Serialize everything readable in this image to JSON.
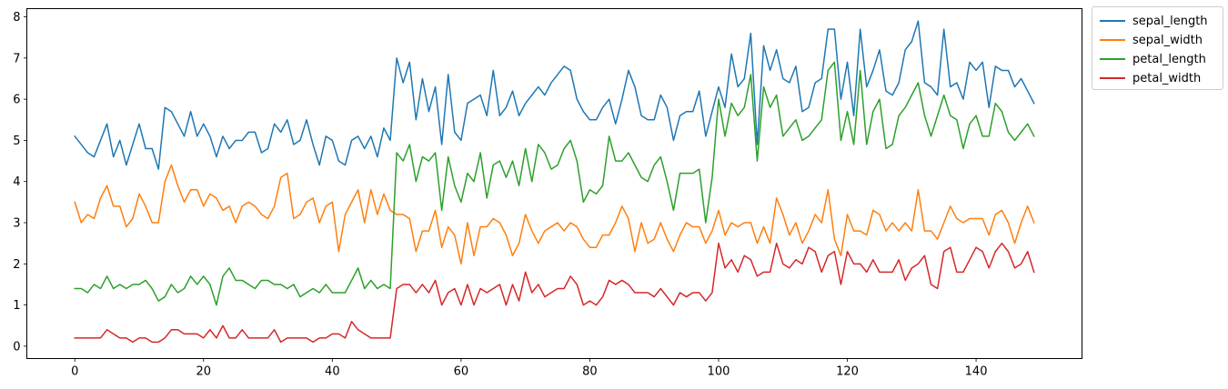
{
  "chart_data": {
    "type": "line",
    "x": [
      0,
      1,
      2,
      3,
      4,
      5,
      6,
      7,
      8,
      9,
      10,
      11,
      12,
      13,
      14,
      15,
      16,
      17,
      18,
      19,
      20,
      21,
      22,
      23,
      24,
      25,
      26,
      27,
      28,
      29,
      30,
      31,
      32,
      33,
      34,
      35,
      36,
      37,
      38,
      39,
      40,
      41,
      42,
      43,
      44,
      45,
      46,
      47,
      48,
      49,
      50,
      51,
      52,
      53,
      54,
      55,
      56,
      57,
      58,
      59,
      60,
      61,
      62,
      63,
      64,
      65,
      66,
      67,
      68,
      69,
      70,
      71,
      72,
      73,
      74,
      75,
      76,
      77,
      78,
      79,
      80,
      81,
      82,
      83,
      84,
      85,
      86,
      87,
      88,
      89,
      90,
      91,
      92,
      93,
      94,
      95,
      96,
      97,
      98,
      99,
      100,
      101,
      102,
      103,
      104,
      105,
      106,
      107,
      108,
      109,
      110,
      111,
      112,
      113,
      114,
      115,
      116,
      117,
      118,
      119,
      120,
      121,
      122,
      123,
      124,
      125,
      126,
      127,
      128,
      129,
      130,
      131,
      132,
      133,
      134,
      135,
      136,
      137,
      138,
      139,
      140,
      141,
      142,
      143,
      144,
      145,
      146,
      147,
      148,
      149
    ],
    "xlim": [
      -7.45,
      156.45
    ],
    "ylim": [
      -0.3,
      8.2
    ],
    "xticks": [
      0,
      20,
      40,
      60,
      80,
      100,
      120,
      140
    ],
    "yticks": [
      0,
      1,
      2,
      3,
      4,
      5,
      6,
      7,
      8
    ],
    "grid": false,
    "legend_position": "outside top-right",
    "series": [
      {
        "name": "sepal_length",
        "color": "#1f77b4",
        "values": [
          5.1,
          4.9,
          4.7,
          4.6,
          5.0,
          5.4,
          4.6,
          5.0,
          4.4,
          4.9,
          5.4,
          4.8,
          4.8,
          4.3,
          5.8,
          5.7,
          5.4,
          5.1,
          5.7,
          5.1,
          5.4,
          5.1,
          4.6,
          5.1,
          4.8,
          5.0,
          5.0,
          5.2,
          5.2,
          4.7,
          4.8,
          5.4,
          5.2,
          5.5,
          4.9,
          5.0,
          5.5,
          4.9,
          4.4,
          5.1,
          5.0,
          4.5,
          4.4,
          5.0,
          5.1,
          4.8,
          5.1,
          4.6,
          5.3,
          5.0,
          7.0,
          6.4,
          6.9,
          5.5,
          6.5,
          5.7,
          6.3,
          4.9,
          6.6,
          5.2,
          5.0,
          5.9,
          6.0,
          6.1,
          5.6,
          6.7,
          5.6,
          5.8,
          6.2,
          5.6,
          5.9,
          6.1,
          6.3,
          6.1,
          6.4,
          6.6,
          6.8,
          6.7,
          6.0,
          5.7,
          5.5,
          5.5,
          5.8,
          6.0,
          5.4,
          6.0,
          6.7,
          6.3,
          5.6,
          5.5,
          5.5,
          6.1,
          5.8,
          5.0,
          5.6,
          5.7,
          5.7,
          6.2,
          5.1,
          5.7,
          6.3,
          5.8,
          7.1,
          6.3,
          6.5,
          7.6,
          4.9,
          7.3,
          6.7,
          7.2,
          6.5,
          6.4,
          6.8,
          5.7,
          5.8,
          6.4,
          6.5,
          7.7,
          7.7,
          6.0,
          6.9,
          5.6,
          7.7,
          6.3,
          6.7,
          7.2,
          6.2,
          6.1,
          6.4,
          7.2,
          7.4,
          7.9,
          6.4,
          6.3,
          6.1,
          7.7,
          6.3,
          6.4,
          6.0,
          6.9,
          6.7,
          6.9,
          5.8,
          6.8,
          6.7,
          6.7,
          6.3,
          6.5,
          6.2,
          5.9
        ]
      },
      {
        "name": "sepal_width",
        "color": "#ff7f0e",
        "values": [
          3.5,
          3.0,
          3.2,
          3.1,
          3.6,
          3.9,
          3.4,
          3.4,
          2.9,
          3.1,
          3.7,
          3.4,
          3.0,
          3.0,
          4.0,
          4.4,
          3.9,
          3.5,
          3.8,
          3.8,
          3.4,
          3.7,
          3.6,
          3.3,
          3.4,
          3.0,
          3.4,
          3.5,
          3.4,
          3.2,
          3.1,
          3.4,
          4.1,
          4.2,
          3.1,
          3.2,
          3.5,
          3.6,
          3.0,
          3.4,
          3.5,
          2.3,
          3.2,
          3.5,
          3.8,
          3.0,
          3.8,
          3.2,
          3.7,
          3.3,
          3.2,
          3.2,
          3.1,
          2.3,
          2.8,
          2.8,
          3.3,
          2.4,
          2.9,
          2.7,
          2.0,
          3.0,
          2.2,
          2.9,
          2.9,
          3.1,
          3.0,
          2.7,
          2.2,
          2.5,
          3.2,
          2.8,
          2.5,
          2.8,
          2.9,
          3.0,
          2.8,
          3.0,
          2.9,
          2.6,
          2.4,
          2.4,
          2.7,
          2.7,
          3.0,
          3.4,
          3.1,
          2.3,
          3.0,
          2.5,
          2.6,
          3.0,
          2.6,
          2.3,
          2.7,
          3.0,
          2.9,
          2.9,
          2.5,
          2.8,
          3.3,
          2.7,
          3.0,
          2.9,
          3.0,
          3.0,
          2.5,
          2.9,
          2.5,
          3.6,
          3.2,
          2.7,
          3.0,
          2.5,
          2.8,
          3.2,
          3.0,
          3.8,
          2.6,
          2.2,
          3.2,
          2.8,
          2.8,
          2.7,
          3.3,
          3.2,
          2.8,
          3.0,
          2.8,
          3.0,
          2.8,
          3.8,
          2.8,
          2.8,
          2.6,
          3.0,
          3.4,
          3.1,
          3.0,
          3.1,
          3.1,
          3.1,
          2.7,
          3.2,
          3.3,
          3.0,
          2.5,
          3.0,
          3.4,
          3.0
        ]
      },
      {
        "name": "petal_length",
        "color": "#2ca02c",
        "values": [
          1.4,
          1.4,
          1.3,
          1.5,
          1.4,
          1.7,
          1.4,
          1.5,
          1.4,
          1.5,
          1.5,
          1.6,
          1.4,
          1.1,
          1.2,
          1.5,
          1.3,
          1.4,
          1.7,
          1.5,
          1.7,
          1.5,
          1.0,
          1.7,
          1.9,
          1.6,
          1.6,
          1.5,
          1.4,
          1.6,
          1.6,
          1.5,
          1.5,
          1.4,
          1.5,
          1.2,
          1.3,
          1.4,
          1.3,
          1.5,
          1.3,
          1.3,
          1.3,
          1.6,
          1.9,
          1.4,
          1.6,
          1.4,
          1.5,
          1.4,
          4.7,
          4.5,
          4.9,
          4.0,
          4.6,
          4.5,
          4.7,
          3.3,
          4.6,
          3.9,
          3.5,
          4.2,
          4.0,
          4.7,
          3.6,
          4.4,
          4.5,
          4.1,
          4.5,
          3.9,
          4.8,
          4.0,
          4.9,
          4.7,
          4.3,
          4.4,
          4.8,
          5.0,
          4.5,
          3.5,
          3.8,
          3.7,
          3.9,
          5.1,
          4.5,
          4.5,
          4.7,
          4.4,
          4.1,
          4.0,
          4.4,
          4.6,
          4.0,
          3.3,
          4.2,
          4.2,
          4.2,
          4.3,
          3.0,
          4.1,
          6.0,
          5.1,
          5.9,
          5.6,
          5.8,
          6.6,
          4.5,
          6.3,
          5.8,
          6.1,
          5.1,
          5.3,
          5.5,
          5.0,
          5.1,
          5.3,
          5.5,
          6.7,
          6.9,
          5.0,
          5.7,
          4.9,
          6.7,
          4.9,
          5.7,
          6.0,
          4.8,
          4.9,
          5.6,
          5.8,
          6.1,
          6.4,
          5.6,
          5.1,
          5.6,
          6.1,
          5.6,
          5.5,
          4.8,
          5.4,
          5.6,
          5.1,
          5.1,
          5.9,
          5.7,
          5.2,
          5.0,
          5.2,
          5.4,
          5.1
        ]
      },
      {
        "name": "petal_width",
        "color": "#d62728",
        "values": [
          0.2,
          0.2,
          0.2,
          0.2,
          0.2,
          0.4,
          0.3,
          0.2,
          0.2,
          0.1,
          0.2,
          0.2,
          0.1,
          0.1,
          0.2,
          0.4,
          0.4,
          0.3,
          0.3,
          0.3,
          0.2,
          0.4,
          0.2,
          0.5,
          0.2,
          0.2,
          0.4,
          0.2,
          0.2,
          0.2,
          0.2,
          0.4,
          0.1,
          0.2,
          0.2,
          0.2,
          0.2,
          0.1,
          0.2,
          0.2,
          0.3,
          0.3,
          0.2,
          0.6,
          0.4,
          0.3,
          0.2,
          0.2,
          0.2,
          0.2,
          1.4,
          1.5,
          1.5,
          1.3,
          1.5,
          1.3,
          1.6,
          1.0,
          1.3,
          1.4,
          1.0,
          1.5,
          1.0,
          1.4,
          1.3,
          1.4,
          1.5,
          1.0,
          1.5,
          1.1,
          1.8,
          1.3,
          1.5,
          1.2,
          1.3,
          1.4,
          1.4,
          1.7,
          1.5,
          1.0,
          1.1,
          1.0,
          1.2,
          1.6,
          1.5,
          1.6,
          1.5,
          1.3,
          1.3,
          1.3,
          1.2,
          1.4,
          1.2,
          1.0,
          1.3,
          1.2,
          1.3,
          1.3,
          1.1,
          1.3,
          2.5,
          1.9,
          2.1,
          1.8,
          2.2,
          2.1,
          1.7,
          1.8,
          1.8,
          2.5,
          2.0,
          1.9,
          2.1,
          2.0,
          2.4,
          2.3,
          1.8,
          2.2,
          2.3,
          1.5,
          2.3,
          2.0,
          2.0,
          1.8,
          2.1,
          1.8,
          1.8,
          1.8,
          2.1,
          1.6,
          1.9,
          2.0,
          2.2,
          1.5,
          1.4,
          2.3,
          2.4,
          1.8,
          1.8,
          2.1,
          2.4,
          2.3,
          1.9,
          2.3,
          2.5,
          2.3,
          1.9,
          2.0,
          2.3,
          1.8
        ]
      }
    ]
  }
}
